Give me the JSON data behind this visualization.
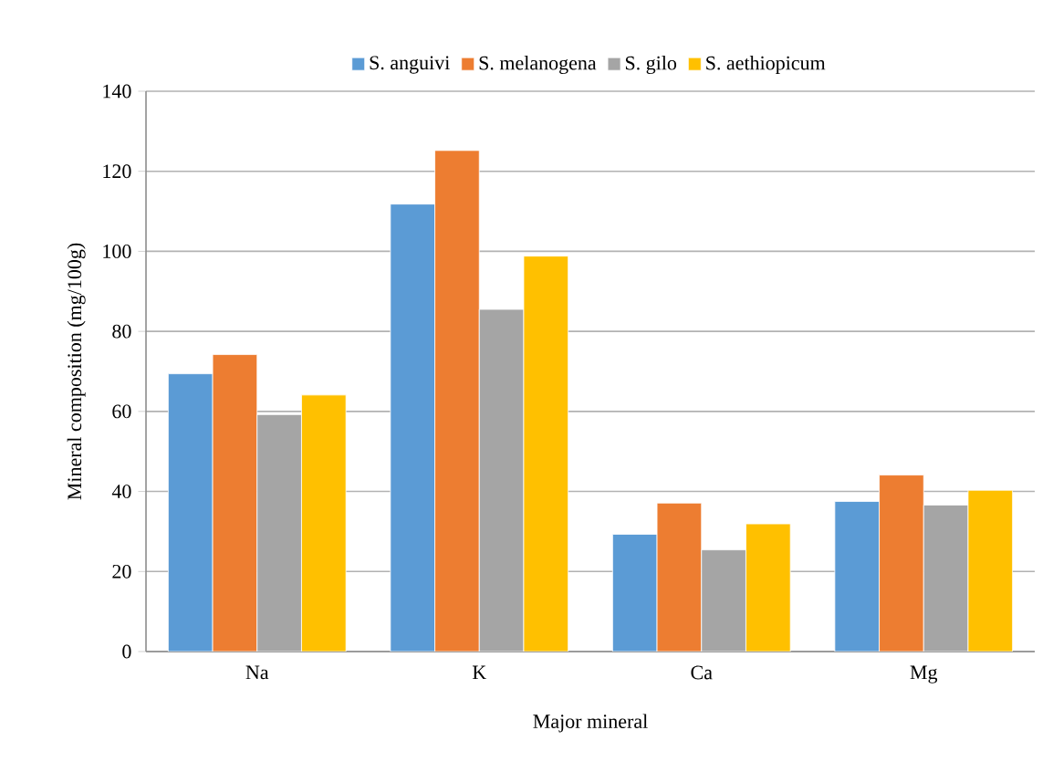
{
  "chart_data": {
    "type": "bar",
    "xlabel": "Major mineral",
    "ylabel": "Mineral composition (mg/100g)",
    "categories": [
      "Na",
      "K",
      "Ca",
      "Mg"
    ],
    "series": [
      {
        "name": "S. anguivi",
        "color": "#5b9bd5",
        "values": [
          69.4,
          111.8,
          29.3,
          37.5
        ]
      },
      {
        "name": "S.  melanogena",
        "color": "#ed7d31",
        "values": [
          74.2,
          125.2,
          37.1,
          44.1
        ]
      },
      {
        "name": "S. gilo",
        "color": "#a5a5a5",
        "values": [
          59.2,
          85.5,
          25.4,
          36.6
        ]
      },
      {
        "name": "S. aethiopicum",
        "color": "#ffc000",
        "values": [
          64.1,
          98.8,
          31.9,
          40.3
        ]
      }
    ],
    "ylim": [
      0,
      140
    ],
    "yticks": [
      0,
      20,
      40,
      60,
      80,
      100,
      120,
      140
    ],
    "grid": "y",
    "legend": "top"
  }
}
